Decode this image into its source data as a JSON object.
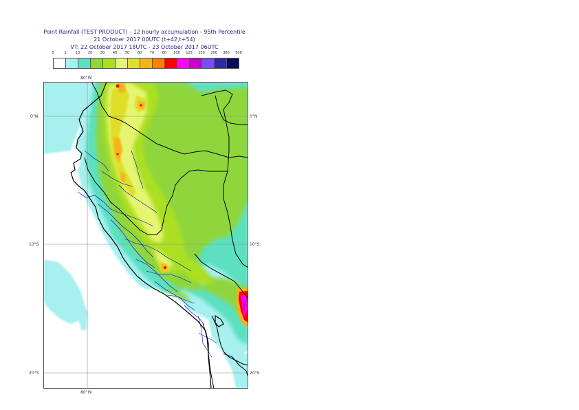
{
  "title": {
    "line1": "Point Rainfall (TEST PRODUCT) - 12 hourly accumulation - 95th Percentile",
    "line2": "21 October 2017 00UTC (t+42,t+54)",
    "line3": "VT: 22 October 2017 18UTC - 23 October 2017 06UTC"
  },
  "legend": {
    "labels": [
      "0",
      "1",
      "10",
      "20",
      "30",
      "40",
      "50",
      "60",
      "70",
      "80",
      "100",
      "125",
      "150",
      "200",
      "300",
      "500"
    ],
    "colors": [
      "#ffffff",
      "#a8f0f0",
      "#5ce0c0",
      "#8fd63c",
      "#aadf22",
      "#e6f570",
      "#dfdf2a",
      "#f5b21a",
      "#ff7f00",
      "#ff0000",
      "#ff00ff",
      "#cc00cc",
      "#7a4cf5",
      "#2b2ba8",
      "#0a0a5c"
    ]
  },
  "axes": {
    "lon_top": "80°W",
    "lon_bottom": "80°W",
    "lat_labels": [
      "0°N",
      "10°S",
      "20°S"
    ]
  }
}
